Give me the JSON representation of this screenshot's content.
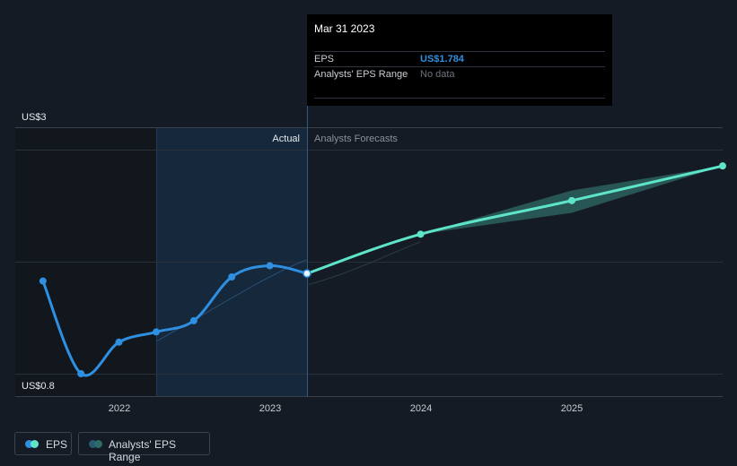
{
  "chart_data": {
    "type": "line",
    "y_labels": {
      "top": "US$3",
      "bottom": "US$0.8"
    },
    "ylim": [
      0.8,
      3.0
    ],
    "x_ticks": [
      "2022",
      "2023",
      "2024",
      "2025"
    ],
    "region_labels": {
      "actual": "Actual",
      "forecast": "Analysts Forecasts"
    },
    "series": [
      {
        "name": "EPS",
        "color": "#2f8fe0",
        "points": [
          {
            "x": "2021-06-30",
            "y": 1.71
          },
          {
            "x": "2021-09-30",
            "y": 0.8
          },
          {
            "x": "2021-12-31",
            "y": 1.11
          },
          {
            "x": "2022-03-31",
            "y": 1.21
          },
          {
            "x": "2022-06-30",
            "y": 1.32
          },
          {
            "x": "2022-09-30",
            "y": 1.75
          },
          {
            "x": "2022-12-31",
            "y": 1.86
          },
          {
            "x": "2023-03-31",
            "y": 1.784
          }
        ]
      },
      {
        "name": "EPS Forecast",
        "color": "#5ee4c9",
        "points": [
          {
            "x": "2023-03-31",
            "y": 1.784
          },
          {
            "x": "2023-12-31",
            "y": 2.17
          },
          {
            "x": "2024-12-31",
            "y": 2.5
          },
          {
            "x": "2025-12-31",
            "y": 2.84
          }
        ]
      }
    ],
    "forecast_range": [
      {
        "x": "2023-12-31",
        "low": 2.17,
        "high": 2.17
      },
      {
        "x": "2024-12-31",
        "low": 2.38,
        "high": 2.6
      },
      {
        "x": "2025-12-31",
        "low": 2.84,
        "high": 2.84
      }
    ]
  },
  "tooltip": {
    "date": "Mar 31 2023",
    "rows": [
      {
        "label": "EPS",
        "value": "US$1.784"
      },
      {
        "label": "Analysts' EPS Range",
        "value": "No data"
      }
    ]
  },
  "legend": [
    {
      "label": "EPS"
    },
    {
      "label": "Analysts' EPS Range"
    }
  ],
  "colors": {
    "eps": "#2f8fe0",
    "forecast": "#5ee4c9",
    "range": "#2f6b66",
    "tooltip_value": "#2f8fe0",
    "tooltip_muted": "#6d737d"
  }
}
